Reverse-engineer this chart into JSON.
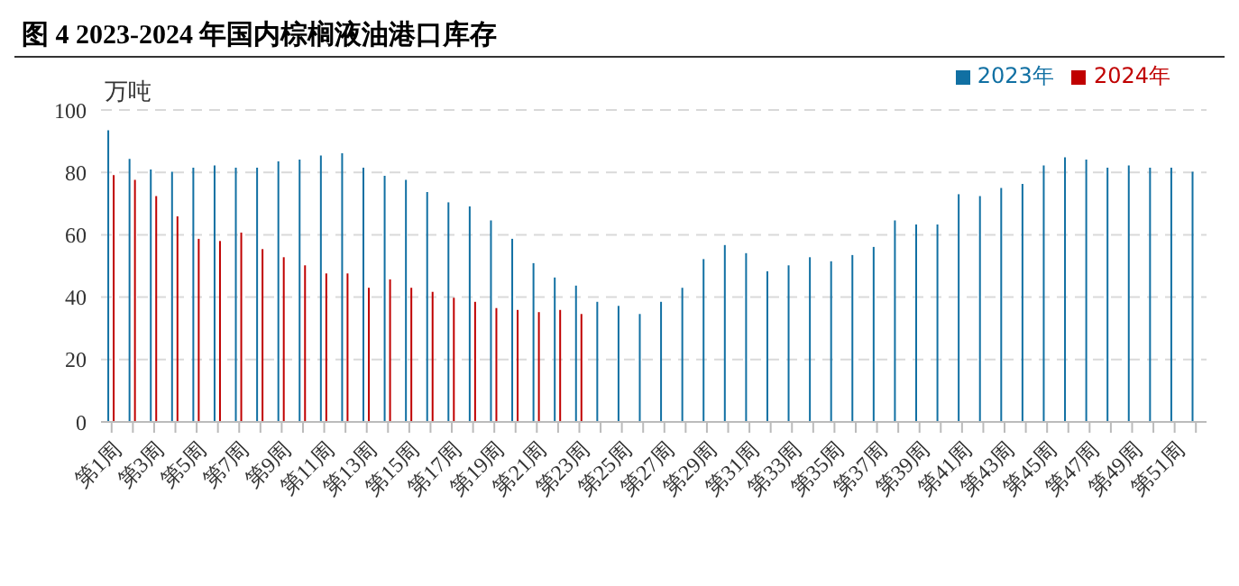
{
  "chart_data": {
    "type": "bar",
    "title": "图 4 2023-2024 年国内棕榈液油港口库存",
    "ylabel": "万吨",
    "categories": [
      "第1周",
      null,
      "第3周",
      null,
      "第5周",
      null,
      "第7周",
      null,
      "第9周",
      null,
      "第11周",
      null,
      "第13周",
      null,
      "第15周",
      null,
      "第17周",
      null,
      "第19周",
      null,
      "第21周",
      null,
      "第23周",
      null,
      "第25周",
      null,
      "第27周",
      null,
      "第29周",
      null,
      "第31周",
      null,
      "第33周",
      null,
      "第35周",
      null,
      "第37周",
      null,
      "第39周",
      null,
      "第41周",
      null,
      "第43周",
      null,
      "第45周",
      null,
      "第47周",
      null,
      "第49周",
      null,
      "第51周",
      null
    ],
    "series": [
      {
        "name": "2023年",
        "color": "#1170a3",
        "values": [
          93.5,
          84.3,
          80.9,
          80.2,
          81.5,
          82.2,
          81.5,
          81.5,
          83.5,
          84.1,
          85.4,
          86.1,
          81.5,
          78.9,
          77.6,
          73.7,
          70.4,
          69.1,
          64.6,
          58.7,
          50.9,
          46.3,
          43.7,
          38.5,
          37.2,
          34.6,
          38.5,
          43,
          52.2,
          56.7,
          54.1,
          48.3,
          50.2,
          52.8,
          51.5,
          53.5,
          56.1,
          64.6,
          63.3,
          63.3,
          73,
          72.4,
          75,
          76.3,
          82.2,
          84.8,
          84.1,
          81.5,
          82.2,
          81.5,
          81.5,
          80.2
        ]
      },
      {
        "name": "2024年",
        "color": "#c00000",
        "values": [
          79.1,
          77.6,
          72.4,
          65.9,
          58.7,
          58,
          60.7,
          55.4,
          52.8,
          50.2,
          47.6,
          47.6,
          43,
          45.7,
          43,
          41.7,
          39.8,
          38.5,
          36.5,
          35.9,
          35.2,
          35.9,
          34.6,
          null,
          null,
          null,
          null,
          null,
          null,
          null,
          null,
          null,
          null,
          null,
          null,
          null,
          null,
          null,
          null,
          null,
          null,
          null,
          null,
          null,
          null,
          null,
          null,
          null,
          null,
          null,
          null,
          null
        ]
      }
    ],
    "ylim": [
      0,
      100
    ],
    "yticks": [
      0,
      20,
      40,
      60,
      80,
      100
    ],
    "grid": "y",
    "legend": "top right"
  }
}
